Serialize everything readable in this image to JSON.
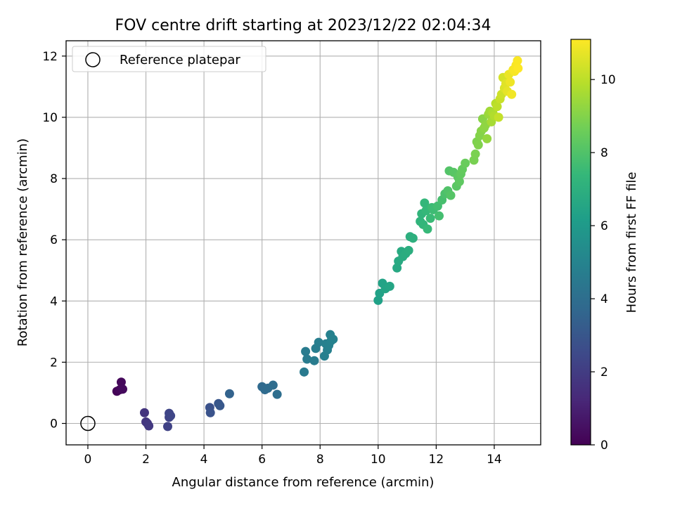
{
  "chart_data": {
    "type": "scatter",
    "title": "FOV centre drift starting at 2023/12/22 02:04:34",
    "xlabel": "Angular distance from reference (arcmin)",
    "ylabel": "Rotation from reference (arcmin)",
    "xlim": [
      -0.75,
      15.6
    ],
    "ylim": [
      -0.7,
      12.5
    ],
    "xticks": [
      0,
      2,
      4,
      6,
      8,
      10,
      12,
      14
    ],
    "yticks": [
      0,
      2,
      4,
      6,
      8,
      10,
      12
    ],
    "grid": true,
    "legend": {
      "placement": "top-left",
      "entries": [
        "Reference platepar"
      ]
    },
    "reference_point": {
      "x": 0,
      "y": 0
    },
    "colorbar": {
      "label": "Hours from first FF file",
      "min": 0,
      "max": 11.1,
      "ticks": [
        0,
        2,
        4,
        6,
        8,
        10
      ],
      "colormap": [
        "#440154",
        "#482878",
        "#3e4989",
        "#31688e",
        "#26828e",
        "#1f9e89",
        "#35b779",
        "#6ece58",
        "#b5de2b",
        "#fde725"
      ]
    },
    "series": [
      {
        "x": [
          1.0,
          1.1,
          1.15,
          1.2,
          1.95,
          2.0,
          2.05,
          2.1,
          2.75,
          2.8,
          2.8,
          2.85,
          4.2,
          4.22,
          4.5,
          4.55,
          4.88,
          6.0,
          6.1,
          6.2,
          6.38,
          6.52,
          7.45,
          7.5,
          7.55,
          7.8,
          7.85,
          7.95,
          8.15,
          8.2,
          8.25,
          8.3,
          8.35,
          8.38,
          8.45,
          10.0,
          10.05,
          10.15,
          10.25,
          10.4,
          10.65,
          10.7,
          10.8,
          10.85,
          10.95,
          11.05,
          11.1,
          11.2,
          11.45,
          11.5,
          11.55,
          11.6,
          11.65,
          11.7,
          11.8,
          11.85,
          11.9,
          12.05,
          12.1,
          12.2,
          12.3,
          12.4,
          12.45,
          12.5,
          12.6,
          12.7,
          12.75,
          12.8,
          12.85,
          12.9,
          13.0,
          13.3,
          13.35,
          13.4,
          13.45,
          13.5,
          13.55,
          13.6,
          13.65,
          13.7,
          13.75,
          13.8,
          13.85,
          13.9,
          13.95,
          14.0,
          14.05,
          14.1,
          14.15,
          14.2,
          14.25,
          14.3,
          14.35,
          14.4,
          14.45,
          14.5,
          14.55,
          14.6,
          14.65,
          14.7,
          14.75,
          14.8,
          14.82
        ],
        "y": [
          1.05,
          1.1,
          1.35,
          1.12,
          0.35,
          0.05,
          0.0,
          -0.08,
          -0.1,
          0.2,
          0.33,
          0.25,
          0.52,
          0.35,
          0.65,
          0.58,
          0.97,
          1.2,
          1.1,
          1.15,
          1.25,
          0.95,
          1.68,
          2.35,
          2.1,
          2.05,
          2.45,
          2.65,
          2.2,
          2.6,
          2.4,
          2.55,
          2.9,
          2.7,
          2.75,
          4.02,
          4.25,
          4.58,
          4.4,
          4.48,
          5.08,
          5.3,
          5.62,
          5.45,
          5.55,
          5.65,
          6.1,
          6.05,
          6.6,
          6.85,
          6.5,
          7.2,
          6.95,
          6.35,
          6.7,
          7.05,
          6.98,
          7.1,
          6.78,
          7.3,
          7.5,
          7.6,
          8.25,
          7.45,
          8.2,
          7.75,
          8.05,
          7.9,
          8.15,
          8.3,
          8.5,
          8.6,
          8.8,
          9.2,
          9.1,
          9.4,
          9.55,
          9.95,
          9.65,
          9.75,
          9.3,
          10.1,
          10.2,
          9.85,
          10.15,
          10.05,
          10.45,
          10.35,
          10.0,
          10.6,
          10.75,
          11.3,
          10.95,
          11.1,
          10.85,
          11.4,
          11.15,
          10.75,
          11.55,
          11.5,
          11.7,
          11.85,
          11.6
        ],
        "t": [
          0.1,
          0.2,
          0.25,
          0.3,
          1.7,
          1.75,
          1.8,
          1.85,
          2.2,
          2.25,
          2.3,
          2.35,
          2.8,
          2.85,
          3.0,
          3.05,
          3.5,
          3.8,
          3.85,
          3.9,
          3.95,
          4.0,
          4.55,
          4.6,
          4.62,
          4.65,
          4.7,
          4.75,
          4.8,
          4.82,
          4.85,
          4.88,
          4.9,
          4.92,
          4.95,
          6.3,
          6.35,
          6.4,
          6.45,
          6.5,
          6.65,
          6.7,
          6.75,
          6.8,
          6.85,
          6.9,
          6.95,
          7.0,
          7.2,
          7.25,
          7.3,
          7.35,
          7.4,
          7.45,
          7.5,
          7.55,
          7.6,
          7.7,
          7.75,
          7.8,
          7.9,
          8.0,
          8.05,
          8.1,
          8.15,
          8.2,
          8.25,
          8.3,
          8.35,
          8.4,
          8.5,
          8.8,
          8.85,
          8.9,
          8.95,
          9.0,
          9.05,
          9.1,
          9.15,
          9.2,
          9.3,
          9.4,
          9.5,
          9.6,
          9.7,
          9.8,
          9.9,
          10.0,
          10.1,
          10.2,
          10.3,
          10.4,
          10.5,
          10.6,
          10.7,
          10.8,
          10.85,
          10.9,
          10.95,
          11.0,
          11.02,
          11.05,
          11.08
        ]
      }
    ]
  }
}
